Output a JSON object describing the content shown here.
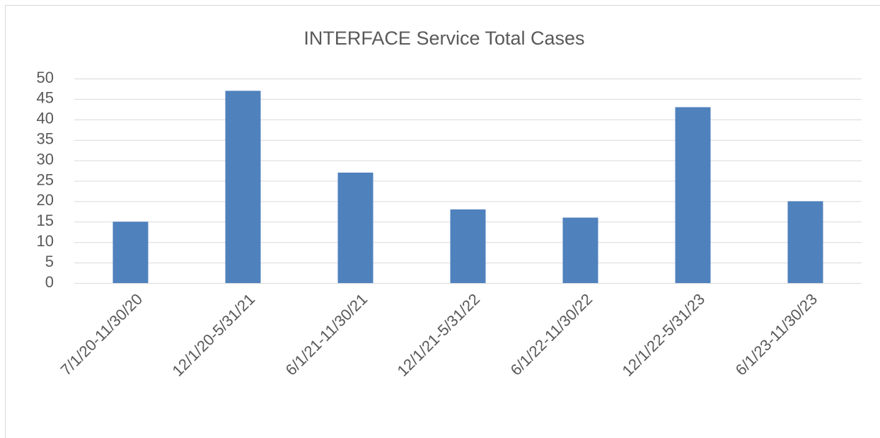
{
  "chart_data": {
    "type": "bar",
    "title": "INTERFACE Service Total Cases",
    "categories": [
      "7/1/20-11/30/20",
      "12/1/20-5/31/21",
      "6/1/21-11/30/21",
      "12/1/21-5/31/22",
      "6/1/22-11/30/22",
      "12/1/22-5/31/23",
      "6/1/23-11/30/23"
    ],
    "values": [
      15,
      47,
      27,
      18,
      16,
      43,
      20
    ],
    "color": "#4f81bd",
    "ylim": [
      0,
      50
    ],
    "yticks": [
      0,
      5,
      10,
      15,
      20,
      25,
      30,
      35,
      40,
      45,
      50
    ],
    "grid": true
  }
}
